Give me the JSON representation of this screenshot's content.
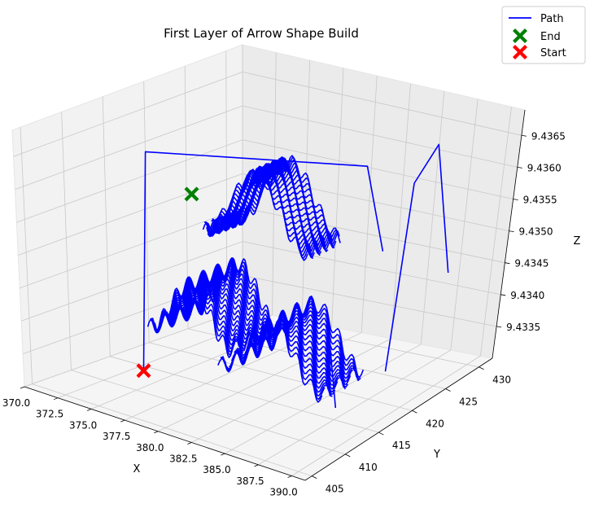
{
  "chart_data": {
    "type": "line",
    "projection": "3d",
    "title": "First Layer of Arrow Shape Build",
    "xlabel": "X",
    "ylabel": "Y",
    "zlabel": "Z",
    "xlim": [
      370,
      391
    ],
    "ylim": [
      404,
      432
    ],
    "zlim": [
      9.433,
      9.4369
    ],
    "x_ticks": [
      "370.0",
      "372.5",
      "375.0",
      "377.5",
      "380.0",
      "382.5",
      "385.0",
      "387.5",
      "390.0"
    ],
    "y_ticks": [
      "405",
      "410",
      "415",
      "420",
      "425",
      "430"
    ],
    "z_ticks": [
      "9.4335",
      "9.4340",
      "9.4345",
      "9.4350",
      "9.4355",
      "9.4360",
      "9.4365"
    ],
    "grid": true,
    "legend_position": "top-right",
    "series": [
      {
        "name": "Path",
        "color": "#0000ff",
        "kind": "line"
      },
      {
        "name": "End",
        "color": "#008000",
        "kind": "marker",
        "marker": "X",
        "point": {
          "x": 371.2,
          "y": 423.5,
          "z": 9.4352
        }
      },
      {
        "name": "Start",
        "color": "#ff0000",
        "kind": "marker",
        "marker": "X",
        "point": {
          "x": 375.3,
          "y": 410.4,
          "z": 9.4333
        }
      }
    ],
    "path_zigzag_rows": [
      {
        "name": "back-arm",
        "x_from": 371.5,
        "x_to": 379.8,
        "y_from": 424.5,
        "y_to": 429.0,
        "z_low": 9.4345,
        "z_high": 9.4357,
        "passes": 30
      },
      {
        "name": "left-lower-arm",
        "x_from": 373.5,
        "x_to": 380.0,
        "y_from": 414.0,
        "y_to": 420.5,
        "z_low": 9.4336,
        "z_high": 9.4346,
        "passes": 22
      },
      {
        "name": "right-lower-arm",
        "x_from": 379.5,
        "x_to": 387.5,
        "y_from": 413.0,
        "y_to": 419.0,
        "z_low": 9.4334,
        "z_high": 9.4344,
        "passes": 20
      }
    ]
  }
}
